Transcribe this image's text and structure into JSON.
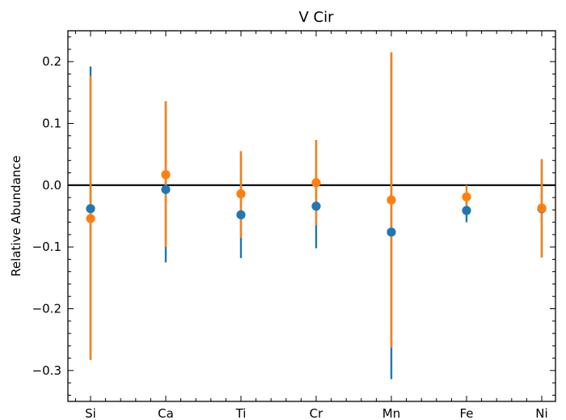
{
  "chart_data": {
    "type": "scatter",
    "title": "V Cir",
    "xlabel": "",
    "ylabel": "Relative Abundance",
    "categories": [
      "Si",
      "Ca",
      "Ti",
      "Cr",
      "Mn",
      "Fe",
      "Ni"
    ],
    "ylim": [
      -0.35,
      0.25
    ],
    "yticks": [
      "0.2",
      "0.1",
      "0.0",
      "−0.1",
      "−0.2",
      "−0.3"
    ],
    "reference_line": 0.0,
    "grid": false,
    "series": [
      {
        "color": "#1f77b4",
        "values": [
          -0.038,
          -0.007,
          -0.048,
          -0.034,
          -0.076,
          -0.041,
          -0.038
        ],
        "err_low": [
          -0.282,
          -0.125,
          -0.118,
          -0.102,
          -0.314,
          -0.06,
          -0.117
        ],
        "err_high": [
          0.192,
          0.135,
          0.055,
          0.073,
          0.215,
          -0.022,
          0.042
        ]
      },
      {
        "color": "#ff7f0e",
        "values": [
          -0.054,
          0.017,
          -0.014,
          0.004,
          -0.024,
          -0.019,
          -0.037
        ],
        "err_low": [
          -0.283,
          -0.1,
          -0.085,
          -0.065,
          -0.263,
          -0.04,
          -0.117
        ],
        "err_high": [
          0.177,
          0.136,
          0.055,
          0.073,
          0.215,
          0.0,
          0.042
        ]
      }
    ]
  }
}
